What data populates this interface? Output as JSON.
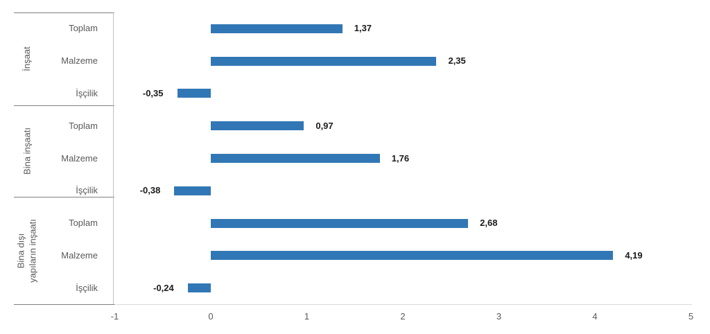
{
  "chart_data": {
    "type": "bar",
    "orientation": "horizontal",
    "title": "",
    "xlabel": "",
    "ylabel": "",
    "xlim": [
      -1,
      5
    ],
    "x_ticks": [
      "-1",
      "0",
      "1",
      "2",
      "3",
      "4",
      "5"
    ],
    "grid": false,
    "legend": false,
    "bar_color": "#3277B5",
    "axis_line_color": "#d9d9d9",
    "separator_line_color": "#7f7f7f",
    "category_axis_line_color": "#bfbfbf",
    "label_color": "#595959",
    "value_label_color": "#1a1a1a",
    "groups": [
      {
        "label": "İnşaat",
        "categories": [
          "Toplam",
          "Malzeme",
          "İşçilik"
        ],
        "values": [
          1.37,
          2.35,
          -0.35
        ],
        "value_labels": [
          "1,37",
          "2,35",
          "-0,35"
        ]
      },
      {
        "label": "Bina inşaatı",
        "categories": [
          "Toplam",
          "Malzeme",
          "İşçilik"
        ],
        "values": [
          0.97,
          1.76,
          -0.38
        ],
        "value_labels": [
          "0,97",
          "1,76",
          "-0,38"
        ]
      },
      {
        "label": "Bina dışı\nyapıların inşaatı",
        "categories": [
          "Toplam",
          "Malzeme",
          "İşçilik"
        ],
        "values": [
          2.68,
          4.19,
          -0.24
        ],
        "value_labels": [
          "2,68",
          "4,19",
          "-0,24"
        ]
      }
    ]
  }
}
